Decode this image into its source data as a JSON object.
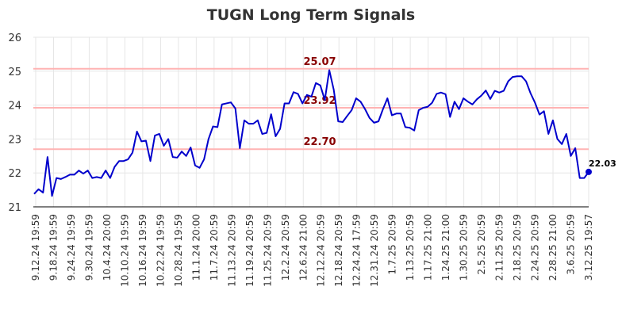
{
  "chart_data": {
    "type": "line",
    "title": "TUGN Long Term Signals",
    "xlabel": "",
    "ylabel": "",
    "ylim": [
      21,
      26
    ],
    "yticks": [
      21,
      22,
      23,
      24,
      25,
      26
    ],
    "grid": true,
    "x_tick_labels": [
      "9.12.24 19:59",
      "9.18.24 19:59",
      "9.24.24 19:59",
      "9.30.24 19:59",
      "10.4.24 20:00",
      "10.10.24 19:59",
      "10.16.24 19:59",
      "10.22.24 19:59",
      "10.28.24 19:59",
      "11.1.24 20:00",
      "11.7.24 20:59",
      "11.13.24 20:59",
      "11.19.24 20:59",
      "11.25.24 20:59",
      "12.2.24 20:59",
      "12.6.24 21:00",
      "12.12.24 20:59",
      "12.18.24 20:59",
      "12.24.24 17:59",
      "12.31.24 20:59",
      "1.7.25 20:59",
      "1.13.25 20:59",
      "1.17.25 21:00",
      "1.24.25 21:00",
      "1.30.25 20:59",
      "2.5.25 20:59",
      "2.11.25 20:59",
      "2.18.25 20:59",
      "2.24.25 20:59",
      "2.28.25 21:00",
      "3.6.25 20:59",
      "3.12.25 19:57"
    ],
    "levels": [
      {
        "value": 25.07,
        "label": "25.07"
      },
      {
        "value": 23.92,
        "label": "23.92"
      },
      {
        "value": 22.7,
        "label": "22.70"
      }
    ],
    "series": [
      {
        "values": [
          21.38,
          21.52,
          21.42,
          22.47,
          21.32,
          21.85,
          21.82,
          21.88,
          21.95,
          21.95,
          22.07,
          21.98,
          22.07,
          21.85,
          21.88,
          21.85,
          22.07,
          21.85,
          22.18,
          22.35,
          22.35,
          22.4,
          22.6,
          23.22,
          22.93,
          22.95,
          22.35,
          23.1,
          23.15,
          22.8,
          23.0,
          22.47,
          22.45,
          22.63,
          22.5,
          22.75,
          22.22,
          22.15,
          22.4,
          23.0,
          23.37,
          23.35,
          24.02,
          24.05,
          24.08,
          23.9,
          22.73,
          23.55,
          23.45,
          23.45,
          23.55,
          23.15,
          23.18,
          23.73,
          23.08,
          23.3,
          24.05,
          24.05,
          24.38,
          24.33,
          24.05,
          24.3,
          24.25,
          24.65,
          24.58,
          24.15,
          25.03,
          24.45,
          23.52,
          23.5,
          23.68,
          23.85,
          24.2,
          24.1,
          23.88,
          23.62,
          23.48,
          23.52,
          23.88,
          24.2,
          23.7,
          23.75,
          23.75,
          23.35,
          23.33,
          23.25,
          23.85,
          23.92,
          23.95,
          24.07,
          24.33,
          24.37,
          24.32,
          23.65,
          24.1,
          23.88,
          24.2,
          24.1,
          24.02,
          24.17,
          24.28,
          24.43,
          24.18,
          24.42,
          24.37,
          24.42,
          24.7,
          24.83,
          24.85,
          24.85,
          24.7,
          24.35,
          24.07,
          23.72,
          23.82,
          23.15,
          23.55,
          23.0,
          22.85,
          23.15,
          22.5,
          22.73,
          21.85,
          21.85,
          22.03
        ]
      }
    ],
    "last_value_label": "22.03",
    "colors": {
      "line": "#0000cc",
      "level_line": "#ffb3b3",
      "level_text": "#880000",
      "grid": "#e6e6e6",
      "axis": "#000000"
    }
  }
}
